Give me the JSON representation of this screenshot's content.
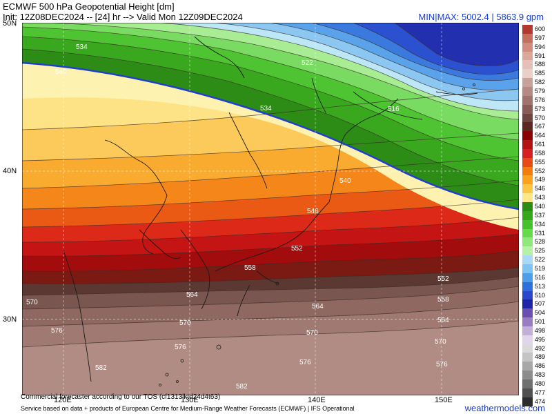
{
  "header": {
    "title": "ECMWF 500 hPa Geopotential Height [dm]",
    "init_line": "Init: 12Z08DEC2024 -- [24] hr --> Valid Mon 12Z09DEC2024",
    "minmax": "MIN|MAX: 5002.4 | 5863.9 gpm"
  },
  "axes": {
    "lat_labels": [
      "50N",
      "40N",
      "30N"
    ],
    "lon_labels": [
      "120E",
      "130E",
      "140E",
      "150E"
    ]
  },
  "contours": {
    "labels": [
      "534",
      "540",
      "522",
      "534",
      "516",
      "540",
      "546",
      "552",
      "558",
      "552",
      "564",
      "558",
      "570",
      "564",
      "564",
      "570",
      "570",
      "576",
      "570",
      "576",
      "576",
      "582",
      "576",
      "582"
    ]
  },
  "colorbar": {
    "levels": [
      "600",
      "597",
      "594",
      "591",
      "588",
      "585",
      "582",
      "579",
      "576",
      "573",
      "570",
      "567",
      "564",
      "561",
      "558",
      "555",
      "552",
      "549",
      "546",
      "543",
      "540",
      "537",
      "534",
      "531",
      "528",
      "525",
      "522",
      "519",
      "516",
      "513",
      "510",
      "507",
      "504",
      "501",
      "498",
      "495",
      "492",
      "489",
      "486",
      "483",
      "480",
      "477",
      "474"
    ],
    "colors": [
      "#b3392e",
      "#c5705f",
      "#d08c7d",
      "#dba79b",
      "#e5c0b6",
      "#e9cfc8",
      "#c9a09a",
      "#b58a84",
      "#a0736d",
      "#8a5c57",
      "#6e4641",
      "#5a2a22",
      "#8b0000",
      "#b31212",
      "#d42020",
      "#e84a17",
      "#f47b10",
      "#f9a21d",
      "#fcc545",
      "#fde787",
      "#2c8c16",
      "#35a81a",
      "#45c22b",
      "#66db4a",
      "#8fe87a",
      "#b6f2a6",
      "#a9d9f7",
      "#7fc3f2",
      "#4e9de8",
      "#2f6fdb",
      "#2a46cc",
      "#1e24a6",
      "#6a4fb0",
      "#9a7cc4",
      "#c2aed7",
      "#e0d5ea",
      "#d9d9d9",
      "#c4c4c4",
      "#a8a8a8",
      "#8c8c8c",
      "#6f6f6f",
      "#505050",
      "#2c2c2c"
    ]
  },
  "footer": {
    "line1": "Commercial forecaster according to our TOS (cf1313lktd24d4t63)",
    "line2": "Service based on data + products of European Centre for Medium-Range Weather Forecasts (ECMWF) | IFS Operational",
    "brand": "weathermodels.com"
  }
}
